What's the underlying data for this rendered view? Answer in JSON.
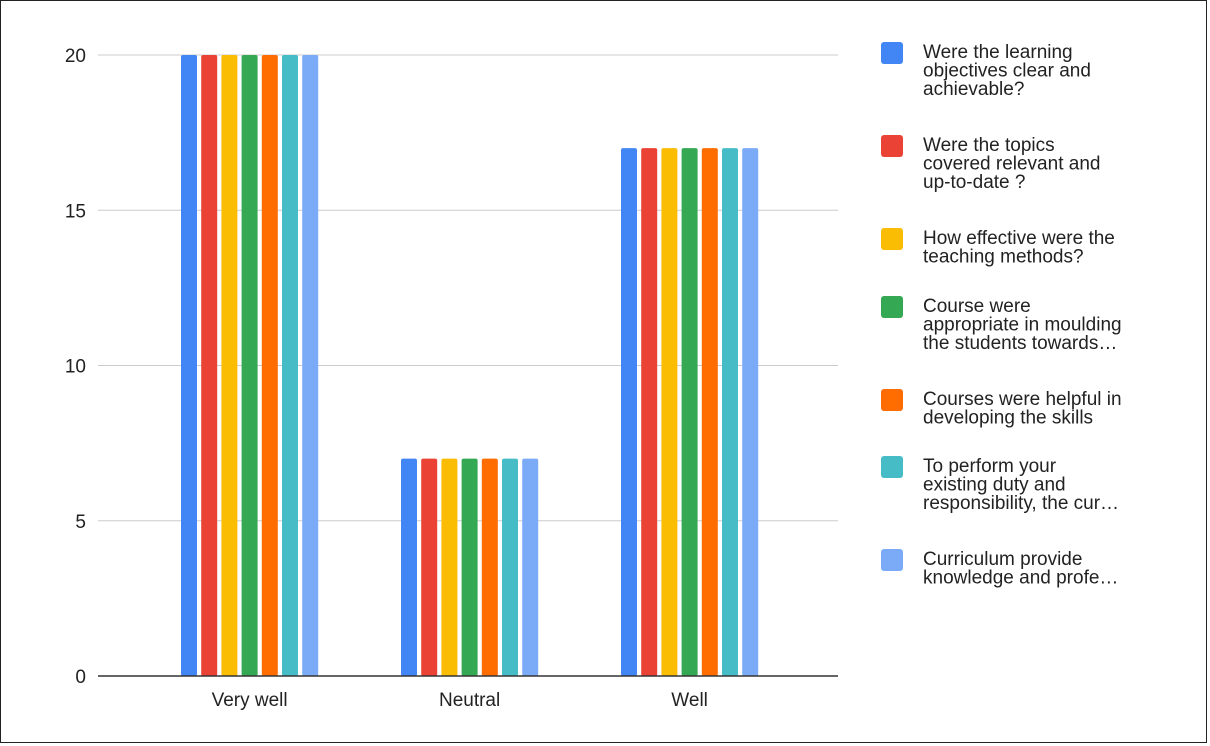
{
  "chart_data": {
    "type": "bar",
    "categories": [
      "Very well",
      "Neutral",
      "Well"
    ],
    "ylim": [
      0,
      20
    ],
    "yticks": [
      0,
      5,
      10,
      15,
      20
    ],
    "grid": true,
    "legend_position": "right",
    "series": [
      {
        "name": "Were the learning objectives clear and achievable?",
        "legend_lines": [
          "Were the learning",
          "objectives clear and",
          "achievable?"
        ],
        "color": "#4285f4",
        "values": [
          20,
          7,
          17
        ]
      },
      {
        "name": "Were the topics covered relevant and up-to-date ?",
        "legend_lines": [
          "Were the topics",
          "covered relevant and",
          "up-to-date ?"
        ],
        "color": "#ea4335",
        "values": [
          20,
          7,
          17
        ]
      },
      {
        "name": "How effective were the teaching methods?",
        "legend_lines": [
          "How effective were the",
          "teaching methods?"
        ],
        "color": "#fbbc04",
        "values": [
          20,
          7,
          17
        ]
      },
      {
        "name": "Course were appropriate in moulding the students towards…",
        "legend_lines": [
          "Course were",
          "appropriate in moulding",
          "the students towards…"
        ],
        "color": "#34a853",
        "values": [
          20,
          7,
          17
        ]
      },
      {
        "name": "Courses were helpful in developing the skills",
        "legend_lines": [
          "Courses were helpful in",
          "developing the skills"
        ],
        "color": "#ff6d01",
        "values": [
          20,
          7,
          17
        ]
      },
      {
        "name": "To perform your existing duty and responsibility, the cur…",
        "legend_lines": [
          "To perform your",
          "existing duty and",
          "responsibility, the cur…"
        ],
        "color": "#46bdc6",
        "values": [
          20,
          7,
          17
        ]
      },
      {
        "name": "Curriculum provide knowledge and profe…",
        "legend_lines": [
          "Curriculum provide",
          "knowledge and profe…"
        ],
        "color": "#7baaf7",
        "values": [
          20,
          7,
          17
        ]
      }
    ]
  }
}
